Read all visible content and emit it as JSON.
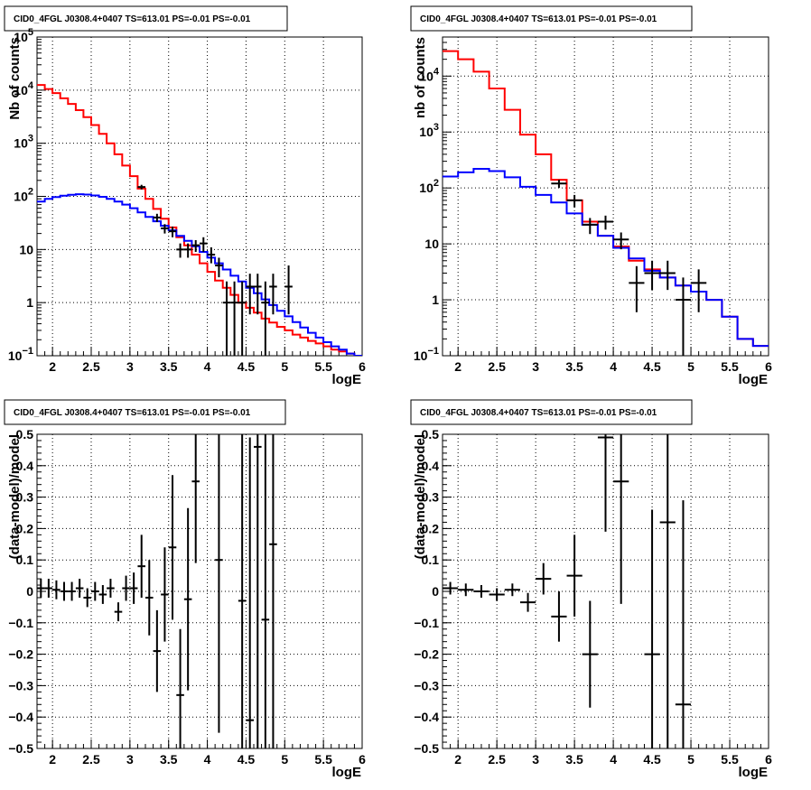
{
  "colors": {
    "model_total": "#ff0000",
    "model_bkg": "#0000ff",
    "data": "#000000",
    "grid": "#000000"
  },
  "chart_data": [
    {
      "type": "line",
      "title": "CID0_4FGL J0308.4+0407 TS=613.01 PS=-0.01 PS=-0.01",
      "xlabel": "logE",
      "ylabel": "Nb of counts",
      "xlim": [
        1.8,
        6.0
      ],
      "ylim": [
        0.1,
        100000
      ],
      "yscale": "log",
      "grid": true,
      "xticks": [
        "2",
        "2.5",
        "3",
        "3.5",
        "4",
        "4.5",
        "5",
        "5.5",
        "6"
      ],
      "yticks": [
        "10^-1",
        "1",
        "10",
        "10^2",
        "10^3",
        "10^4",
        "10^5"
      ],
      "bin_edges": [
        1.8,
        1.9,
        2.0,
        2.1,
        2.2,
        2.3,
        2.4,
        2.5,
        2.6,
        2.7,
        2.8,
        2.9,
        3.0,
        3.1,
        3.2,
        3.3,
        3.4,
        3.5,
        3.6,
        3.7,
        3.8,
        3.9,
        4.0,
        4.1,
        4.2,
        4.3,
        4.4,
        4.5,
        4.6,
        4.7,
        4.8,
        4.9,
        5.0,
        5.1,
        5.2,
        5.3,
        5.4,
        5.5,
        5.6,
        5.7,
        5.8,
        5.9,
        6.0
      ],
      "series": [
        {
          "role": "model-total",
          "values": [
            12500,
            10500,
            8800,
            7000,
            5500,
            4200,
            3100,
            2200,
            1500,
            1000,
            620,
            380,
            240,
            140,
            90,
            58,
            38,
            26,
            17,
            12,
            8,
            5.5,
            3.8,
            2.6,
            1.9,
            1.4,
            1.0,
            0.8,
            0.65,
            0.5,
            0.42,
            0.35,
            0.3,
            0.25,
            0.22,
            0.19,
            0.17,
            0.15,
            0.13,
            0.12,
            0.11,
            0.1
          ]
        },
        {
          "role": "model-bkg",
          "values": [
            80,
            90,
            97,
            103,
            107,
            110,
            108,
            104,
            98,
            90,
            80,
            70,
            60,
            50,
            41,
            34,
            28,
            23,
            18,
            14.5,
            11.5,
            9,
            7,
            5.5,
            4.2,
            3.2,
            2.5,
            1.9,
            1.5,
            1.15,
            0.9,
            0.7,
            0.55,
            0.43,
            0.34,
            0.27,
            0.22,
            0.18,
            0.15,
            0.13,
            0.11,
            0.1
          ]
        },
        {
          "role": "data",
          "points": [
            {
              "x": 3.15,
              "y": 150,
              "lo": 135,
              "hi": 165
            },
            {
              "x": 3.35,
              "y": 40,
              "lo": 33,
              "hi": 47
            },
            {
              "x": 3.45,
              "y": 25,
              "lo": 20,
              "hi": 30
            },
            {
              "x": 3.55,
              "y": 22,
              "lo": 17,
              "hi": 27
            },
            {
              "x": 3.65,
              "y": 10,
              "lo": 7,
              "hi": 13
            },
            {
              "x": 3.75,
              "y": 10,
              "lo": 7,
              "hi": 13
            },
            {
              "x": 3.85,
              "y": 12,
              "lo": 9,
              "hi": 15
            },
            {
              "x": 3.95,
              "y": 13,
              "lo": 9,
              "hi": 17
            },
            {
              "x": 4.05,
              "y": 8,
              "lo": 5.5,
              "hi": 11
            },
            {
              "x": 4.15,
              "y": 5,
              "lo": 3,
              "hi": 7
            },
            {
              "x": 4.25,
              "y": 1,
              "lo": 0.1,
              "hi": 2.5
            },
            {
              "x": 4.35,
              "y": 1,
              "lo": 0.1,
              "hi": 2.5
            },
            {
              "x": 4.45,
              "y": 1,
              "lo": 0.1,
              "hi": 2.5
            },
            {
              "x": 4.55,
              "y": 2,
              "lo": 0.6,
              "hi": 3.5
            },
            {
              "x": 4.65,
              "y": 2,
              "lo": 0.6,
              "hi": 3.5
            },
            {
              "x": 4.75,
              "y": 1,
              "lo": 0.1,
              "hi": 2.5
            },
            {
              "x": 4.85,
              "y": 2,
              "lo": 0.6,
              "hi": 3.5
            },
            {
              "x": 5.05,
              "y": 2,
              "lo": 0.6,
              "hi": 5
            }
          ]
        }
      ]
    },
    {
      "type": "line",
      "title": "CID0_4FGL J0308.4+0407 TS=613.01 PS=-0.01 PS=-0.01",
      "xlabel": "logE",
      "ylabel": "nb of counts",
      "xlim": [
        1.8,
        6.0
      ],
      "ylim": [
        0.1,
        50000
      ],
      "yscale": "log",
      "grid": true,
      "xticks": [
        "2",
        "2.5",
        "3",
        "3.5",
        "4",
        "4.5",
        "5",
        "5.5",
        "6"
      ],
      "yticks": [
        "10^-1",
        "1",
        "10",
        "10^2",
        "10^3",
        "10^4"
      ],
      "bin_edges": [
        1.8,
        2.0,
        2.2,
        2.4,
        2.6,
        2.8,
        3.0,
        3.2,
        3.4,
        3.6,
        3.8,
        4.0,
        4.2,
        4.4,
        4.6,
        4.8,
        5.0,
        5.2,
        5.4,
        5.6,
        5.8,
        6.0
      ],
      "series": [
        {
          "role": "model-total",
          "values": [
            28000,
            20000,
            12000,
            6000,
            2500,
            900,
            400,
            140,
            60,
            25,
            14,
            9,
            5,
            3.5,
            2.5,
            1.8,
            1.4,
            1.0,
            0.5,
            0.2,
            0.15
          ]
        },
        {
          "role": "model-bkg",
          "values": [
            160,
            190,
            220,
            200,
            155,
            105,
            75,
            55,
            35,
            22,
            14,
            8.5,
            5.5,
            3.3,
            2.5,
            1.8,
            1.4,
            1.0,
            0.5,
            0.2,
            0.15
          ]
        },
        {
          "role": "data",
          "points": [
            {
              "x": 3.3,
              "y": 120,
              "lo": 100,
              "hi": 140
            },
            {
              "x": 3.5,
              "y": 60,
              "lo": 45,
              "hi": 75
            },
            {
              "x": 3.7,
              "y": 22,
              "lo": 15,
              "hi": 29
            },
            {
              "x": 3.9,
              "y": 25,
              "lo": 18,
              "hi": 32
            },
            {
              "x": 4.1,
              "y": 12,
              "lo": 8,
              "hi": 16
            },
            {
              "x": 4.3,
              "y": 2,
              "lo": 0.6,
              "hi": 4
            },
            {
              "x": 4.5,
              "y": 3,
              "lo": 1.5,
              "hi": 5
            },
            {
              "x": 4.7,
              "y": 3,
              "lo": 1.5,
              "hi": 5
            },
            {
              "x": 4.9,
              "y": 1,
              "lo": 0.1,
              "hi": 2.5
            },
            {
              "x": 5.1,
              "y": 2,
              "lo": 0.6,
              "hi": 3.5
            }
          ]
        }
      ]
    },
    {
      "type": "scatter",
      "title": "CID0_4FGL J0308.4+0407 TS=613.01 PS=-0.01 PS=-0.01",
      "xlabel": "logE",
      "ylabel": "(data-model)/model",
      "xlim": [
        1.8,
        6.0
      ],
      "ylim": [
        -0.5,
        0.5
      ],
      "grid": true,
      "xticks": [
        "2",
        "2.5",
        "3",
        "3.5",
        "4",
        "4.5",
        "5",
        "5.5",
        "6"
      ],
      "yticks": [
        "−0.5",
        "−0.4",
        "−0.3",
        "−0.2",
        "−0.1",
        "0",
        "0.1",
        "0.2",
        "0.3",
        "0.4",
        "0.5"
      ],
      "xerr": 0.05,
      "points": [
        {
          "x": 1.85,
          "y": 0.01,
          "err": 0.03
        },
        {
          "x": 1.95,
          "y": 0.01,
          "err": 0.03
        },
        {
          "x": 2.05,
          "y": 0.005,
          "err": 0.03
        },
        {
          "x": 2.15,
          "y": 0.0,
          "err": 0.03
        },
        {
          "x": 2.25,
          "y": 0.0,
          "err": 0.03
        },
        {
          "x": 2.35,
          "y": 0.01,
          "err": 0.03
        },
        {
          "x": 2.45,
          "y": -0.02,
          "err": 0.03
        },
        {
          "x": 2.55,
          "y": 0.0,
          "err": 0.03
        },
        {
          "x": 2.65,
          "y": -0.01,
          "err": 0.03
        },
        {
          "x": 2.75,
          "y": 0.01,
          "err": 0.03
        },
        {
          "x": 2.85,
          "y": -0.065,
          "err": 0.03
        },
        {
          "x": 2.95,
          "y": 0.01,
          "err": 0.04
        },
        {
          "x": 3.05,
          "y": 0.01,
          "err": 0.05
        },
        {
          "x": 3.15,
          "y": 0.08,
          "err": 0.1
        },
        {
          "x": 3.25,
          "y": -0.02,
          "err": 0.12
        },
        {
          "x": 3.35,
          "y": -0.19,
          "err": 0.13
        },
        {
          "x": 3.45,
          "y": -0.01,
          "err": 0.15
        },
        {
          "x": 3.55,
          "y": 0.14,
          "err": 0.23
        },
        {
          "x": 3.65,
          "y": -0.33,
          "err": 0.21
        },
        {
          "x": 3.75,
          "y": -0.025,
          "err": 0.29
        },
        {
          "x": 3.85,
          "y": 0.35,
          "err": 0.26
        },
        {
          "x": 4.15,
          "y": 0.1,
          "err": 0.55
        },
        {
          "x": 4.45,
          "y": -0.03,
          "err": 0.9
        },
        {
          "x": 4.55,
          "y": -0.41,
          "err": 0.9
        },
        {
          "x": 4.65,
          "y": 0.46,
          "err": 1.0
        },
        {
          "x": 4.75,
          "y": -0.09,
          "err": 0.9
        },
        {
          "x": 4.85,
          "y": 0.15,
          "err": 0.9
        }
      ]
    },
    {
      "type": "scatter",
      "title": "CID0_4FGL J0308.4+0407 TS=613.01 PS=-0.01 PS=-0.01",
      "xlabel": "logE",
      "ylabel": "(data-model)/model",
      "xlim": [
        1.8,
        6.0
      ],
      "ylim": [
        -0.5,
        0.5
      ],
      "grid": true,
      "xticks": [
        "2",
        "2.5",
        "3",
        "3.5",
        "4",
        "4.5",
        "5",
        "5.5",
        "6"
      ],
      "yticks": [
        "−0.5",
        "−0.4",
        "−0.3",
        "−0.2",
        "−0.1",
        "0",
        "0.1",
        "0.2",
        "0.3",
        "0.4",
        "0.5"
      ],
      "xerr": 0.1,
      "points": [
        {
          "x": 1.9,
          "y": 0.01,
          "err": 0.02
        },
        {
          "x": 2.1,
          "y": 0.005,
          "err": 0.02
        },
        {
          "x": 2.3,
          "y": 0.0,
          "err": 0.02
        },
        {
          "x": 2.5,
          "y": -0.01,
          "err": 0.02
        },
        {
          "x": 2.7,
          "y": 0.005,
          "err": 0.02
        },
        {
          "x": 2.9,
          "y": -0.035,
          "err": 0.03
        },
        {
          "x": 3.1,
          "y": 0.04,
          "err": 0.05
        },
        {
          "x": 3.3,
          "y": -0.08,
          "err": 0.08
        },
        {
          "x": 3.5,
          "y": 0.05,
          "err": 0.13
        },
        {
          "x": 3.7,
          "y": -0.2,
          "err": 0.17
        },
        {
          "x": 3.9,
          "y": 0.49,
          "err": 0.3
        },
        {
          "x": 4.1,
          "y": 0.35,
          "err": 0.39
        },
        {
          "x": 4.5,
          "y": -0.2,
          "err": 0.46
        },
        {
          "x": 4.7,
          "y": 0.22,
          "err": 0.9
        },
        {
          "x": 4.9,
          "y": -0.36,
          "err": 0.65
        }
      ]
    }
  ]
}
